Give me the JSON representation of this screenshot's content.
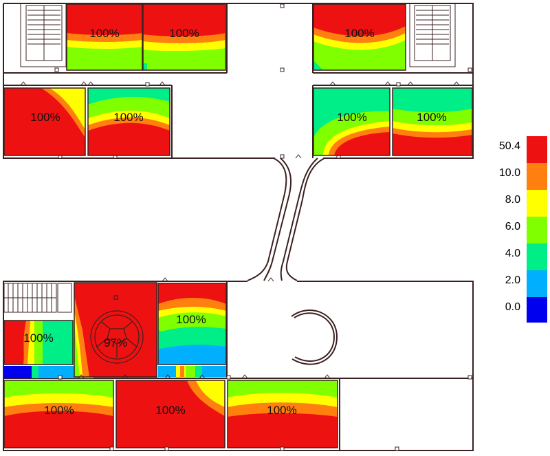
{
  "legend": {
    "labels": [
      "50.4",
      "10.0",
      "8.0",
      "6.0",
      "4.0",
      "2.0",
      "0.0"
    ],
    "colors": [
      "#ee1111",
      "#ff7f0f",
      "#ffff00",
      "#7fff00",
      "#00ee88",
      "#00b0ff",
      "#0000ee"
    ]
  },
  "rooms": [
    {
      "id": "room-top-1",
      "label": "100%"
    },
    {
      "id": "room-top-2",
      "label": "100%"
    },
    {
      "id": "room-top-3",
      "label": "100%"
    },
    {
      "id": "room-top-4",
      "label": "100%"
    },
    {
      "id": "room-top-5",
      "label": "100%"
    },
    {
      "id": "room-top-6",
      "label": "100%"
    },
    {
      "id": "room-top-7",
      "label": "100%"
    },
    {
      "id": "room-bottom-1",
      "label": "100%"
    },
    {
      "id": "room-bottom-2",
      "label": "97%"
    },
    {
      "id": "room-bottom-3",
      "label": "100%"
    },
    {
      "id": "room-bottom-4",
      "label": "100%"
    },
    {
      "id": "room-bottom-5",
      "label": "100%"
    },
    {
      "id": "room-bottom-6",
      "label": "100%"
    }
  ],
  "colors": {
    "wall": "#3a2020",
    "background": "#ffffff"
  }
}
